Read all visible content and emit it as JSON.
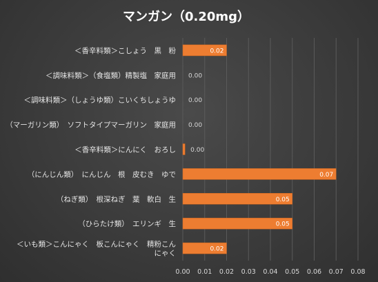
{
  "chart_data": {
    "type": "bar",
    "orientation": "horizontal",
    "title": "マンガン（0.20mg）",
    "categories": [
      "＜香辛料類＞こしょう　黒　粉",
      "＜調味料類＞（食塩類）精製塩　家庭用",
      "＜調味料類＞（しょうゆ類）こいくちしょうゆ",
      "（マーガリン類）　ソフトタイプマーガリン　家庭用",
      "＜香辛料類＞にんにく　おろし",
      "（にんじん類）　にんじん　根　皮むき　ゆで",
      "（ねぎ類）　根深ねぎ　葉　軟白　生",
      "（ひらたけ類）　エリンギ　生",
      "＜いも類＞こんにゃく　板こんにゃく　精粉こんにゃく"
    ],
    "category_lines": [
      [
        "＜香辛料類＞こしょう　黒　粉"
      ],
      [
        "＜調味料類＞（食塩類）精製塩　家庭用"
      ],
      [
        "＜調味料類＞（しょうゆ類）こいくちしょうゆ"
      ],
      [
        "（マーガリン類）　ソフトタイプマーガリン　家庭用"
      ],
      [
        "＜香辛料類＞にんにく　おろし"
      ],
      [
        "（にんじん類）　にんじん　根　皮むき　ゆで"
      ],
      [
        "（ねぎ類）　根深ねぎ　葉　軟白　生"
      ],
      [
        "（ひらたけ類）　エリンギ　生"
      ],
      [
        "＜いも類＞こんにゃく　板こんにゃく　精粉こん",
        "にゃく"
      ]
    ],
    "values": [
      0.02,
      0.0,
      0.0,
      0.0,
      0.001,
      0.07,
      0.05,
      0.05,
      0.02
    ],
    "data_labels": [
      "0.02",
      "0.00",
      "0.00",
      "0.00",
      "0.00",
      "0.07",
      "0.05",
      "0.05",
      "0.02"
    ],
    "xlim": [
      0,
      0.08
    ],
    "xticks": [
      "0.00",
      "0.01",
      "0.02",
      "0.03",
      "0.04",
      "0.05",
      "0.06",
      "0.07",
      "0.08"
    ],
    "bar_color": "#ed7d31",
    "grid": true,
    "legend": "none"
  }
}
